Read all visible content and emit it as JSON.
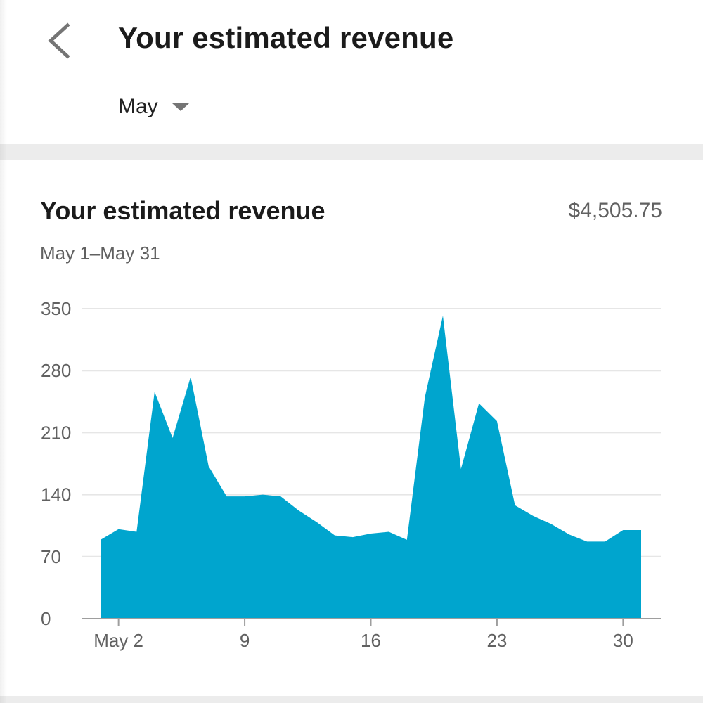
{
  "header": {
    "title": "Your estimated revenue",
    "back_icon": "chevron-left-icon",
    "month_select": {
      "selected": "May",
      "icon": "caret-down-icon"
    }
  },
  "card": {
    "title": "Your estimated revenue",
    "total": "$4,505.75",
    "date_range": "May 1–May 31"
  },
  "colors": {
    "area_fill": "#00a5ce",
    "grid": "#e6e6e6",
    "axis": "#9e9e9e",
    "label": "#616161"
  },
  "chart_data": {
    "type": "area",
    "title": "Your estimated revenue",
    "xlabel": "",
    "ylabel": "",
    "x": [
      1,
      2,
      3,
      4,
      5,
      6,
      7,
      8,
      9,
      10,
      11,
      12,
      13,
      14,
      15,
      16,
      17,
      18,
      19,
      20,
      21,
      22,
      23,
      24,
      25,
      26,
      27,
      28,
      29,
      30,
      31
    ],
    "series": [
      {
        "values": [
          89,
          101,
          98,
          256,
          204,
          273,
          172,
          138,
          138,
          140,
          138,
          122,
          109,
          94,
          92,
          96,
          98,
          89,
          250,
          342,
          169,
          243,
          223,
          128,
          116,
          107,
          95,
          87,
          87,
          100,
          100
        ]
      }
    ],
    "x_ticks": [
      {
        "day": 2,
        "label": "May 2"
      },
      {
        "day": 9,
        "label": "9"
      },
      {
        "day": 16,
        "label": "16"
      },
      {
        "day": 23,
        "label": "23"
      },
      {
        "day": 30,
        "label": "30"
      }
    ],
    "y_ticks": [
      0,
      70,
      140,
      210,
      280,
      350
    ],
    "ylim": [
      0,
      350
    ],
    "xlim": [
      1,
      31
    ],
    "grid": true,
    "legend": "none"
  }
}
